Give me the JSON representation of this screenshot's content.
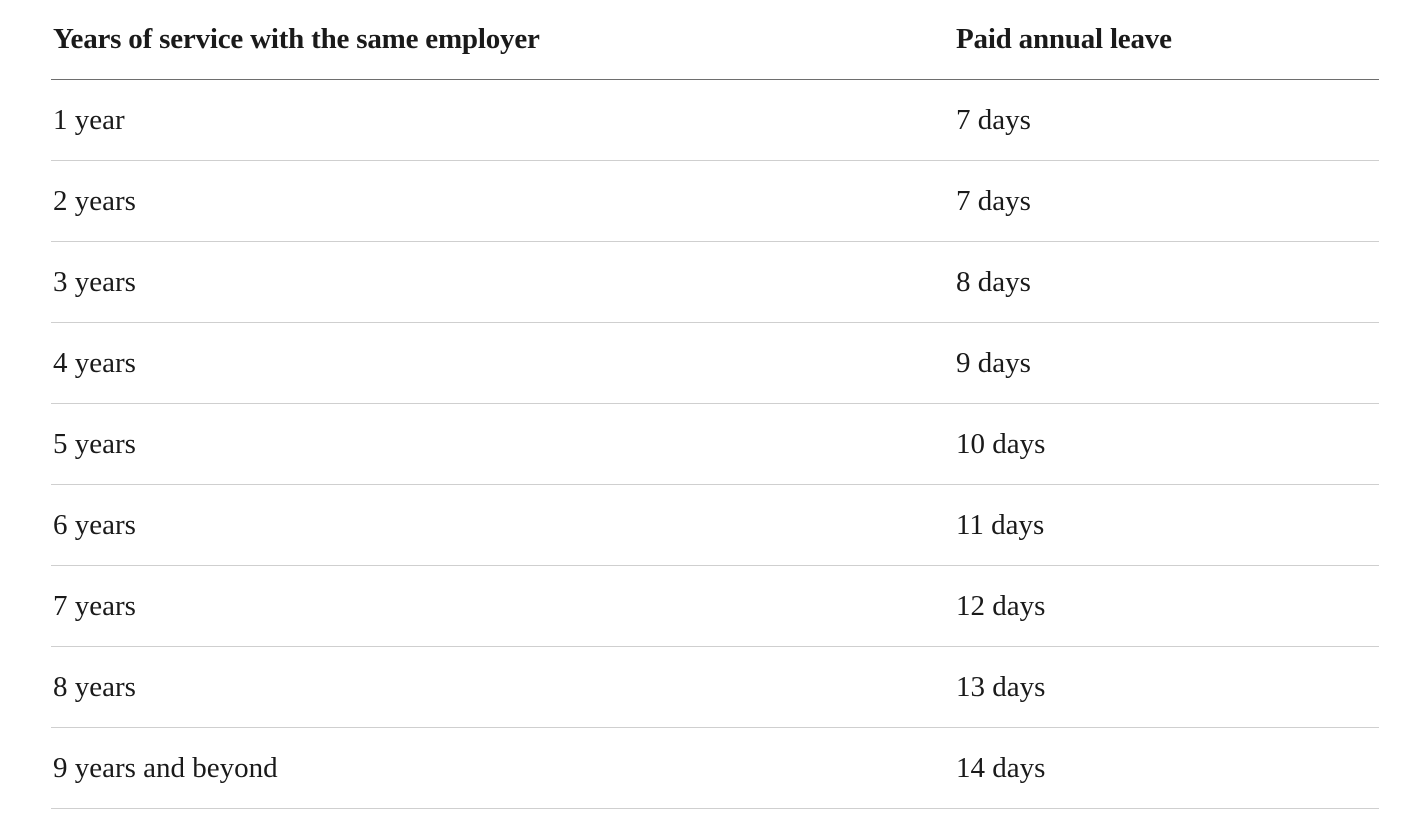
{
  "table": {
    "headers": [
      "Years of service with the same employer",
      "Paid annual leave"
    ],
    "rows": [
      [
        "1 year",
        "7 days"
      ],
      [
        "2 years",
        "7 days"
      ],
      [
        "3 years",
        "8 days"
      ],
      [
        "4 years",
        "9 days"
      ],
      [
        "5 years",
        "10 days"
      ],
      [
        "6 years",
        "11 days"
      ],
      [
        "7 years",
        "12 days"
      ],
      [
        "8 years",
        "13 days"
      ],
      [
        "9 years and beyond",
        "14 days"
      ]
    ]
  }
}
